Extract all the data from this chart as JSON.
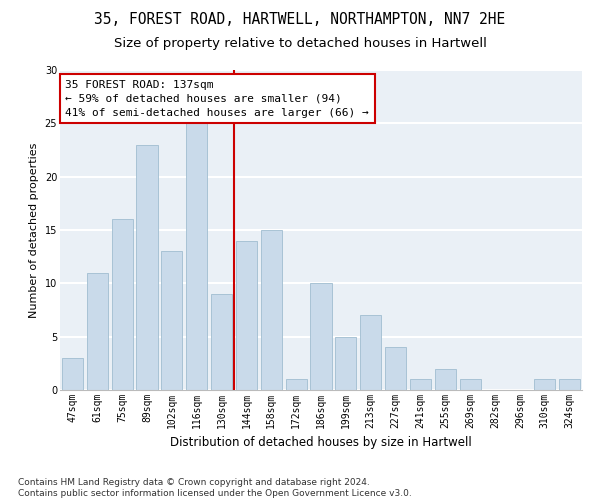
{
  "title1": "35, FOREST ROAD, HARTWELL, NORTHAMPTON, NN7 2HE",
  "title2": "Size of property relative to detached houses in Hartwell",
  "xlabel": "Distribution of detached houses by size in Hartwell",
  "ylabel": "Number of detached properties",
  "categories": [
    "47sqm",
    "61sqm",
    "75sqm",
    "89sqm",
    "102sqm",
    "116sqm",
    "130sqm",
    "144sqm",
    "158sqm",
    "172sqm",
    "186sqm",
    "199sqm",
    "213sqm",
    "227sqm",
    "241sqm",
    "255sqm",
    "269sqm",
    "282sqm",
    "296sqm",
    "310sqm",
    "324sqm"
  ],
  "values": [
    3,
    11,
    16,
    23,
    13,
    25,
    9,
    14,
    15,
    1,
    10,
    5,
    7,
    4,
    1,
    2,
    1,
    0,
    0,
    1,
    1
  ],
  "bar_color": "#c9daea",
  "bar_edgecolor": "#a0bdd0",
  "bar_linewidth": 0.6,
  "vline_color": "#cc0000",
  "annotation_line1": "35 FOREST ROAD: 137sqm",
  "annotation_line2": "← 59% of detached houses are smaller (94)",
  "annotation_line3": "41% of semi-detached houses are larger (66) →",
  "annotation_box_color": "white",
  "annotation_box_edgecolor": "#cc0000",
  "ylim": [
    0,
    30
  ],
  "yticks": [
    0,
    5,
    10,
    15,
    20,
    25,
    30
  ],
  "footnote": "Contains HM Land Registry data © Crown copyright and database right 2024.\nContains public sector information licensed under the Open Government Licence v3.0.",
  "bg_color": "#eaf0f6",
  "grid_color": "white",
  "title1_fontsize": 10.5,
  "title2_fontsize": 9.5,
  "xlabel_fontsize": 8.5,
  "ylabel_fontsize": 8,
  "footnote_fontsize": 6.5,
  "annotation_fontsize": 8,
  "tick_fontsize": 7,
  "vline_pos": 6.5
}
